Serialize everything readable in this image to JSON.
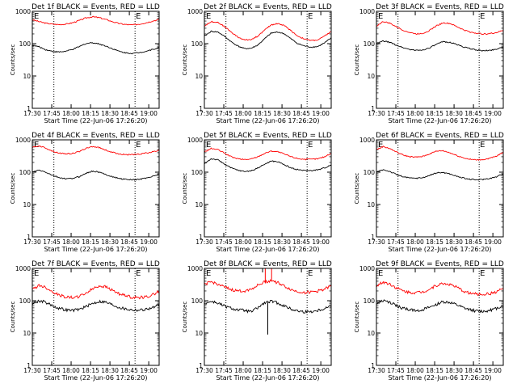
{
  "chart_data": [
    {
      "type": "line",
      "title": "Det 1f BLACK = Events, RED = LLD",
      "xlabel": "Start Time (22-Jun-06 17:26:20)",
      "ylabel": "Counts/sec",
      "yscale": "log",
      "ylim": [
        1,
        1000
      ],
      "yticks": [
        "1",
        "10",
        "100",
        "1000"
      ],
      "xticks": [
        "17:30",
        "17:45",
        "18:00",
        "18:15",
        "18:30",
        "18:45",
        "19:00"
      ],
      "xlim": [
        0,
        100
      ],
      "vlines": [
        17,
        81
      ],
      "markers": [
        "E",
        "E"
      ],
      "series": [
        {
          "color": "#ff0000",
          "values": [
            550,
            480,
            430,
            400,
            390,
            400,
            440,
            520,
            620,
            680,
            640,
            560,
            480,
            420,
            390,
            380,
            400,
            440,
            500,
            560
          ]
        },
        {
          "color": "#000000",
          "values": [
            90,
            80,
            65,
            58,
            55,
            58,
            66,
            80,
            100,
            108,
            98,
            85,
            70,
            58,
            52,
            50,
            53,
            58,
            66,
            76
          ]
        }
      ]
    },
    {
      "type": "line",
      "title": "Det 2f BLACK = Events, RED = LLD",
      "xlabel": "Start Time (22-Jun-06 17:26:20)",
      "ylabel": "Counts/sec",
      "yscale": "log",
      "ylim": [
        1,
        1000
      ],
      "yticks": [
        "1",
        "10",
        "100",
        "1000"
      ],
      "xticks": [
        "17:30",
        "17:45",
        "18:00",
        "18:15",
        "18:30",
        "18:45",
        "19:00"
      ],
      "xlim": [
        0,
        100
      ],
      "vlines": [
        17,
        81
      ],
      "markers": [
        "E",
        "E"
      ],
      "series": [
        {
          "color": "#ff0000",
          "values": [
            350,
            480,
            460,
            340,
            230,
            160,
            130,
            135,
            170,
            260,
            380,
            420,
            360,
            250,
            170,
            140,
            125,
            130,
            170,
            240
          ]
        },
        {
          "color": "#000000",
          "values": [
            170,
            240,
            230,
            170,
            115,
            85,
            70,
            72,
            90,
            140,
            210,
            230,
            200,
            140,
            100,
            85,
            78,
            82,
            105,
            150
          ]
        }
      ]
    },
    {
      "type": "line",
      "title": "Det 3f BLACK = Events, RED = LLD",
      "xlabel": "Start Time (22-Jun-06 17:26:20)",
      "ylabel": "Counts/sec",
      "yscale": "log",
      "ylim": [
        1,
        1000
      ],
      "yticks": [
        "1",
        "10",
        "100",
        "1000"
      ],
      "xticks": [
        "17:30",
        "17:45",
        "18:00",
        "18:15",
        "18:30",
        "18:45",
        "19:00"
      ],
      "xlim": [
        0,
        100
      ],
      "vlines": [
        17,
        81
      ],
      "markers": [
        "E",
        "E"
      ],
      "series": [
        {
          "color": "#ff0000",
          "values": [
            350,
            480,
            430,
            330,
            260,
            220,
            200,
            210,
            260,
            360,
            440,
            420,
            340,
            270,
            230,
            210,
            200,
            205,
            220,
            260
          ]
        },
        {
          "color": "#000000",
          "values": [
            100,
            120,
            110,
            90,
            75,
            66,
            62,
            64,
            75,
            95,
            115,
            110,
            95,
            80,
            70,
            64,
            60,
            62,
            68,
            80
          ]
        }
      ]
    },
    {
      "type": "line",
      "title": "Det 4f BLACK = Events, RED = LLD",
      "xlabel": "Start Time (22-Jun-06 17:26:20)",
      "ylabel": "Counts/sec",
      "yscale": "log",
      "ylim": [
        1,
        1000
      ],
      "yticks": [
        "1",
        "10",
        "100",
        "1000"
      ],
      "xticks": [
        "17:30",
        "17:45",
        "18:00",
        "18:15",
        "18:30",
        "18:45",
        "19:00"
      ],
      "xlim": [
        0,
        100
      ],
      "vlines": [
        17,
        81
      ],
      "markers": [
        "E",
        "E"
      ],
      "series": [
        {
          "color": "#ff0000",
          "values": [
            580,
            650,
            560,
            450,
            390,
            370,
            380,
            430,
            540,
            620,
            580,
            480,
            410,
            370,
            350,
            345,
            360,
            390,
            420,
            470
          ]
        },
        {
          "color": "#000000",
          "values": [
            100,
            115,
            100,
            80,
            68,
            62,
            64,
            72,
            92,
            108,
            100,
            85,
            72,
            64,
            60,
            58,
            60,
            66,
            74,
            88
          ]
        }
      ]
    },
    {
      "type": "line",
      "title": "Det 5f BLACK = Events, RED = LLD",
      "xlabel": "Start Time (22-Jun-06 17:26:20)",
      "ylabel": "Counts/sec",
      "yscale": "log",
      "ylim": [
        1,
        1000
      ],
      "yticks": [
        "1",
        "10",
        "100",
        "1000"
      ],
      "xticks": [
        "17:30",
        "17:45",
        "18:00",
        "18:15",
        "18:30",
        "18:45",
        "19:00"
      ],
      "xlim": [
        0,
        100
      ],
      "vlines": [
        17,
        81
      ],
      "markers": [
        "E",
        "E"
      ],
      "series": [
        {
          "color": "#ff0000",
          "values": [
            420,
            540,
            500,
            390,
            300,
            260,
            245,
            255,
            300,
            380,
            450,
            430,
            360,
            300,
            265,
            250,
            250,
            260,
            300,
            380
          ]
        },
        {
          "color": "#000000",
          "values": [
            180,
            260,
            240,
            180,
            135,
            115,
            105,
            110,
            135,
            175,
            220,
            210,
            170,
            135,
            120,
            112,
            112,
            118,
            135,
            170
          ]
        }
      ]
    },
    {
      "type": "line",
      "title": "Det 6f BLACK = Events, RED = LLD",
      "xlabel": "Start Time (22-Jun-06 17:26:20)",
      "ylabel": "Counts/sec",
      "yscale": "log",
      "ylim": [
        1,
        1000
      ],
      "yticks": [
        "1",
        "10",
        "100",
        "1000"
      ],
      "xticks": [
        "17:30",
        "17:45",
        "18:00",
        "18:15",
        "18:30",
        "18:45",
        "19:00"
      ],
      "xlim": [
        0,
        100
      ],
      "vlines": [
        17,
        81
      ],
      "markers": [
        "E",
        "E"
      ],
      "series": [
        {
          "color": "#ff0000",
          "values": [
            500,
            620,
            540,
            420,
            340,
            300,
            290,
            310,
            370,
            450,
            460,
            400,
            330,
            280,
            250,
            240,
            245,
            270,
            310,
            420
          ]
        },
        {
          "color": "#000000",
          "values": [
            100,
            120,
            105,
            85,
            72,
            66,
            65,
            68,
            80,
            95,
            98,
            88,
            75,
            66,
            60,
            58,
            60,
            64,
            72,
            90
          ]
        }
      ]
    },
    {
      "type": "line",
      "title": "Det 7f BLACK = Events, RED = LLD",
      "xlabel": "Start Time (22-Jun-06 17:26:20)",
      "ylabel": "Counts/sec",
      "yscale": "log",
      "ylim": [
        1,
        1000
      ],
      "yticks": [
        "1",
        "10",
        "100",
        "1000"
      ],
      "xticks": [
        "17:30",
        "17:45",
        "18:00",
        "18:15",
        "18:30",
        "18:45",
        "19:00"
      ],
      "xlim": [
        0,
        100
      ],
      "vlines": [
        17,
        81
      ],
      "markers": [
        "E",
        "E"
      ],
      "series": [
        {
          "color": "#ff0000",
          "values": [
            220,
            300,
            260,
            190,
            150,
            130,
            125,
            135,
            170,
            230,
            290,
            270,
            210,
            165,
            140,
            128,
            125,
            130,
            150,
            200
          ]
        },
        {
          "color": "#000000",
          "values": [
            80,
            100,
            90,
            70,
            58,
            52,
            50,
            54,
            65,
            82,
            95,
            90,
            75,
            62,
            55,
            52,
            51,
            54,
            60,
            72
          ]
        }
      ]
    },
    {
      "type": "line",
      "title": "Det 8f BLACK = Events, RED = LLD",
      "xlabel": "Start Time (22-Jun-06 17:26:20)",
      "ylabel": "Counts/sec",
      "yscale": "log",
      "ylim": [
        1,
        1000
      ],
      "yticks": [
        "1",
        "10",
        "100",
        "1000"
      ],
      "xticks": [
        "17:30",
        "17:45",
        "18:00",
        "18:15",
        "18:30",
        "18:45",
        "19:00"
      ],
      "xlim": [
        0,
        100
      ],
      "vlines": [
        17,
        81
      ],
      "markers": [
        "E",
        "E"
      ],
      "series": [
        {
          "color": "#ff0000",
          "values": [
            320,
            380,
            330,
            260,
            220,
            200,
            200,
            230,
            300,
            380,
            420,
            360,
            280,
            220,
            190,
            180,
            185,
            200,
            230,
            280
          ],
          "spikes": [
            {
              "x": 48,
              "y": 1000
            },
            {
              "x": 53,
              "y": 1000
            }
          ]
        },
        {
          "color": "#000000",
          "values": [
            80,
            95,
            85,
            68,
            58,
            52,
            50,
            45,
            60,
            85,
            95,
            85,
            68,
            55,
            48,
            45,
            46,
            50,
            58,
            70
          ],
          "spikes": [
            {
              "x": 50,
              "y": 9
            }
          ]
        }
      ]
    },
    {
      "type": "line",
      "title": "Det 9f BLACK = Events, RED = LLD",
      "xlabel": "Start Time (22-Jun-06 17:26:20)",
      "ylabel": "Counts/sec",
      "yscale": "log",
      "ylim": [
        1,
        1000
      ],
      "yticks": [
        "1",
        "10",
        "100",
        "1000"
      ],
      "xticks": [
        "17:30",
        "17:45",
        "18:00",
        "18:15",
        "18:30",
        "18:45",
        "19:00"
      ],
      "xlim": [
        0,
        100
      ],
      "vlines": [
        17,
        81
      ],
      "markers": [
        "E",
        "E"
      ],
      "series": [
        {
          "color": "#ff0000",
          "values": [
            280,
            380,
            330,
            250,
            200,
            180,
            178,
            190,
            230,
            300,
            340,
            320,
            260,
            200,
            170,
            160,
            158,
            165,
            190,
            240
          ]
        },
        {
          "color": "#000000",
          "values": [
            80,
            100,
            88,
            70,
            58,
            52,
            50,
            53,
            62,
            78,
            92,
            88,
            74,
            60,
            52,
            48,
            47,
            50,
            58,
            72
          ]
        }
      ]
    }
  ]
}
